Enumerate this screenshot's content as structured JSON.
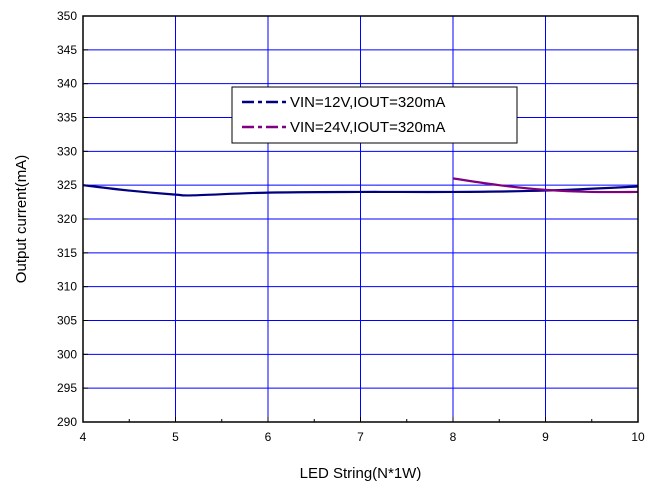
{
  "chart_data": {
    "type": "line",
    "title": "",
    "xlabel": "LED String(N*1W)",
    "ylabel": "Output current(mA)",
    "xlim": [
      4,
      10
    ],
    "ylim": [
      290,
      350
    ],
    "xticks": [
      4,
      5,
      6,
      7,
      8,
      9,
      10
    ],
    "yticks": [
      290,
      295,
      300,
      305,
      310,
      315,
      320,
      325,
      330,
      335,
      340,
      345,
      350
    ],
    "grid": true,
    "legend_position": "top-center",
    "series": [
      {
        "name": "VIN=12V,IOUT=320mA",
        "color": "#000080",
        "x": [
          4,
          4.5,
          5,
          5.2,
          6,
          7,
          8,
          9,
          10
        ],
        "y": [
          325.0,
          324.2,
          323.6,
          323.5,
          323.9,
          324.0,
          324.0,
          324.2,
          324.8
        ]
      },
      {
        "name": "VIN=24V,IOUT=320mA",
        "color": "#800080",
        "x": [
          8,
          8.5,
          9,
          9.5,
          10
        ],
        "y": [
          326.0,
          325.0,
          324.3,
          324.0,
          324.0
        ]
      }
    ]
  },
  "colors": {
    "grid": "#0000ff",
    "axis": "#000000",
    "background": "#ffffff"
  }
}
